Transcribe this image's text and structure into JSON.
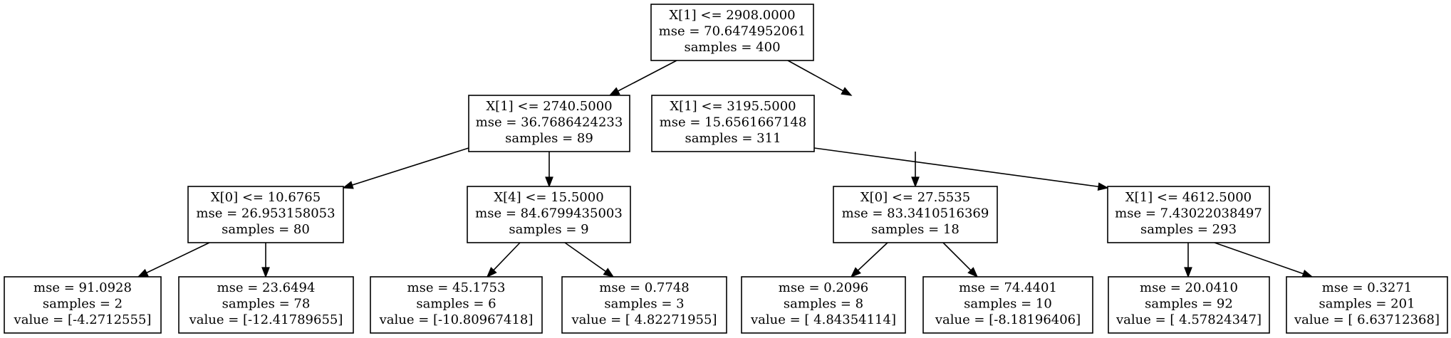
{
  "tree": {
    "nodes": [
      {
        "id": "n0",
        "lines": [
          "X[1] <= 2908.0000",
          "mse = 70.6474952061",
          "samples = 400"
        ]
      },
      {
        "id": "n1",
        "lines": [
          "X[1] <= 2740.5000",
          "mse = 36.7686424233",
          "samples = 89"
        ]
      },
      {
        "id": "n2",
        "lines": [
          "X[1] <= 3195.5000",
          "mse = 15.6561667148",
          "samples = 311"
        ]
      },
      {
        "id": "n3",
        "lines": [
          "X[0] <= 10.6765",
          "mse = 26.953158053",
          "samples = 80"
        ]
      },
      {
        "id": "n4",
        "lines": [
          "X[4] <= 15.5000",
          "mse = 84.6799435003",
          "samples = 9"
        ]
      },
      {
        "id": "n5",
        "lines": [
          "X[0] <= 27.5535",
          "mse = 83.3410516369",
          "samples = 18"
        ]
      },
      {
        "id": "n6",
        "lines": [
          "X[1] <= 4612.5000",
          "mse = 7.43022038497",
          "samples = 293"
        ]
      },
      {
        "id": "n7",
        "lines": [
          "mse = 91.0928",
          "samples = 2",
          "value = [-4.2712555]"
        ]
      },
      {
        "id": "n8",
        "lines": [
          "mse = 23.6494",
          "samples = 78",
          "value = [-12.41789655]"
        ]
      },
      {
        "id": "n9",
        "lines": [
          "mse = 45.1753",
          "samples = 6",
          "value = [-10.80967418]"
        ]
      },
      {
        "id": "n10",
        "lines": [
          "mse = 0.7748",
          "samples = 3",
          "value = [ 4.82271955]"
        ]
      },
      {
        "id": "n11",
        "lines": [
          "mse = 0.2096",
          "samples = 8",
          "value = [ 4.84354114]"
        ]
      },
      {
        "id": "n12",
        "lines": [
          "mse = 74.4401",
          "samples = 10",
          "value = [-8.18196406]"
        ]
      },
      {
        "id": "n13",
        "lines": [
          "mse = 20.0410",
          "samples = 92",
          "value = [ 4.57824347]"
        ]
      },
      {
        "id": "n14",
        "lines": [
          "mse = 0.3271",
          "samples = 201",
          "value = [ 6.63712368]"
        ]
      }
    ],
    "edges": [
      {
        "from": "n0",
        "to": "n1"
      },
      {
        "from": "n0",
        "to": "n2"
      },
      {
        "from": "n1",
        "to": "n3"
      },
      {
        "from": "n1",
        "to": "n4"
      },
      {
        "from": "n2",
        "to": "n5"
      },
      {
        "from": "n2",
        "to": "n6"
      },
      {
        "from": "n3",
        "to": "n7"
      },
      {
        "from": "n3",
        "to": "n8"
      },
      {
        "from": "n4",
        "to": "n9"
      },
      {
        "from": "n4",
        "to": "n10"
      },
      {
        "from": "n5",
        "to": "n11"
      },
      {
        "from": "n5",
        "to": "n12"
      },
      {
        "from": "n6",
        "to": "n13"
      },
      {
        "from": "n6",
        "to": "n14"
      }
    ]
  }
}
